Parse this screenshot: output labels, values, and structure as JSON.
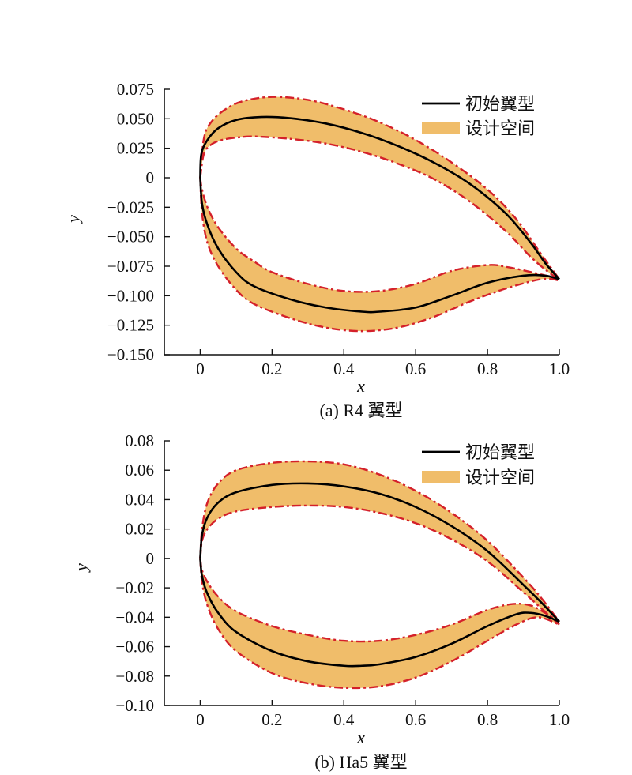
{
  "chart_data": [
    {
      "type": "line",
      "panel_caption": "(a) R4 翼型",
      "xlabel": "x",
      "ylabel": "y",
      "xlim": [
        -0.1,
        1.0
      ],
      "ylim": [
        -0.15,
        0.075
      ],
      "x_ticks": [
        0,
        0.2,
        0.4,
        0.6,
        0.8,
        1.0
      ],
      "x_tick_labels": [
        "0",
        "0.2",
        "0.4",
        "0.6",
        "0.8",
        "1.0"
      ],
      "y_ticks": [
        0.075,
        0.05,
        0.025,
        0,
        -0.025,
        -0.05,
        -0.075,
        -0.1,
        -0.125,
        -0.15
      ],
      "y_tick_labels": [
        "0.075",
        "0.050",
        "0.025",
        "0",
        "−0.025",
        "−0.050",
        "−0.075",
        "−0.100",
        "−0.125",
        "−0.150"
      ],
      "legend": {
        "position": "top-right",
        "entries": [
          "初始翼型",
          "设计空间"
        ]
      },
      "colors": {
        "baseline": "#000000",
        "band_fill": "#f0bd6a",
        "band_edge": "#d4202a"
      },
      "series": [
        {
          "name": "初始翼型",
          "role": "upper",
          "x": [
            0,
            0.003,
            0.02,
            0.05,
            0.1,
            0.17,
            0.25,
            0.35,
            0.45,
            0.55,
            0.65,
            0.75,
            0.85,
            0.92,
            0.96,
            1.0
          ],
          "y": [
            0,
            0.02,
            0.032,
            0.042,
            0.049,
            0.0515,
            0.0505,
            0.046,
            0.038,
            0.027,
            0.013,
            -0.005,
            -0.03,
            -0.055,
            -0.072,
            -0.086
          ]
        },
        {
          "name": "初始翼型",
          "role": "lower",
          "x": [
            0,
            0.005,
            0.02,
            0.05,
            0.1,
            0.15,
            0.25,
            0.35,
            0.45,
            0.5,
            0.6,
            0.7,
            0.8,
            0.9,
            0.96,
            1.0
          ],
          "y": [
            0,
            -0.022,
            -0.04,
            -0.06,
            -0.08,
            -0.092,
            -0.103,
            -0.11,
            -0.1135,
            -0.1135,
            -0.11,
            -0.1,
            -0.089,
            -0.083,
            -0.083,
            -0.086
          ]
        },
        {
          "name": "设计空间",
          "role": "upper_band_top",
          "x": [
            0,
            0.01,
            0.03,
            0.07,
            0.12,
            0.2,
            0.3,
            0.4,
            0.5,
            0.6,
            0.7,
            0.8,
            0.88,
            0.95,
            1.0
          ],
          "y": [
            0,
            0.033,
            0.047,
            0.058,
            0.065,
            0.0685,
            0.066,
            0.058,
            0.047,
            0.032,
            0.013,
            -0.01,
            -0.035,
            -0.065,
            -0.086
          ]
        },
        {
          "name": "设计空间",
          "role": "upper_band_bottom",
          "x": [
            0,
            0.01,
            0.03,
            0.06,
            0.1,
            0.15,
            0.25,
            0.35,
            0.45,
            0.55,
            0.65,
            0.75,
            0.85,
            0.92,
            0.97,
            1.0
          ],
          "y": [
            0,
            0.02,
            0.028,
            0.032,
            0.034,
            0.035,
            0.033,
            0.029,
            0.022,
            0.012,
            -0.001,
            -0.02,
            -0.045,
            -0.067,
            -0.08,
            -0.086
          ]
        },
        {
          "name": "设计空间",
          "role": "lower_band_top",
          "x": [
            0,
            0.005,
            0.02,
            0.05,
            0.1,
            0.15,
            0.2,
            0.3,
            0.4,
            0.5,
            0.6,
            0.7,
            0.8,
            0.86,
            0.95,
            1.0
          ],
          "y": [
            0,
            -0.01,
            -0.025,
            -0.042,
            -0.06,
            -0.071,
            -0.08,
            -0.09,
            -0.096,
            -0.096,
            -0.09,
            -0.079,
            -0.074,
            -0.076,
            -0.082,
            -0.086
          ]
        },
        {
          "name": "设计空间",
          "role": "lower_band_bottom",
          "x": [
            0,
            0.005,
            0.02,
            0.05,
            0.1,
            0.15,
            0.25,
            0.35,
            0.45,
            0.55,
            0.65,
            0.75,
            0.85,
            0.95,
            1.0
          ],
          "y": [
            0,
            -0.03,
            -0.055,
            -0.075,
            -0.095,
            -0.107,
            -0.119,
            -0.127,
            -0.13,
            -0.127,
            -0.118,
            -0.105,
            -0.094,
            -0.086,
            -0.087
          ]
        }
      ]
    },
    {
      "type": "line",
      "panel_caption": "(b) Ha5 翼型",
      "xlabel": "x",
      "ylabel": "y",
      "xlim": [
        -0.1,
        1.0
      ],
      "ylim": [
        -0.1,
        0.08
      ],
      "x_ticks": [
        0,
        0.2,
        0.4,
        0.6,
        0.8,
        1.0
      ],
      "x_tick_labels": [
        "0",
        "0.2",
        "0.4",
        "0.6",
        "0.8",
        "1.0"
      ],
      "y_ticks": [
        0.08,
        0.06,
        0.04,
        0.02,
        0,
        -0.02,
        -0.04,
        -0.06,
        -0.08,
        -0.1
      ],
      "y_tick_labels": [
        "0.08",
        "0.06",
        "0.04",
        "0.02",
        "0",
        "−0.02",
        "−0.04",
        "−0.06",
        "−0.08",
        "−0.10"
      ],
      "legend": {
        "position": "top-right",
        "entries": [
          "初始翼型",
          "设计空间"
        ]
      },
      "colors": {
        "baseline": "#000000",
        "band_fill": "#f0bd6a",
        "band_edge": "#d4202a"
      },
      "series": [
        {
          "name": "初始翼型",
          "role": "upper",
          "x": [
            0,
            0.005,
            0.02,
            0.05,
            0.1,
            0.2,
            0.3,
            0.4,
            0.5,
            0.6,
            0.7,
            0.8,
            0.9,
            0.95,
            1.0
          ],
          "y": [
            0,
            0.016,
            0.028,
            0.038,
            0.045,
            0.05,
            0.051,
            0.049,
            0.044,
            0.035,
            0.022,
            0.005,
            -0.018,
            -0.03,
            -0.043
          ]
        },
        {
          "name": "初始翼型",
          "role": "lower",
          "x": [
            0,
            0.005,
            0.02,
            0.05,
            0.1,
            0.2,
            0.3,
            0.4,
            0.45,
            0.5,
            0.6,
            0.7,
            0.8,
            0.88,
            0.92,
            0.96,
            1.0
          ],
          "y": [
            0,
            -0.012,
            -0.024,
            -0.037,
            -0.05,
            -0.063,
            -0.07,
            -0.073,
            -0.073,
            -0.072,
            -0.067,
            -0.058,
            -0.046,
            -0.038,
            -0.037,
            -0.039,
            -0.043
          ]
        },
        {
          "name": "设计空间",
          "role": "upper_band_top",
          "x": [
            0,
            0.005,
            0.02,
            0.05,
            0.1,
            0.2,
            0.3,
            0.4,
            0.5,
            0.6,
            0.7,
            0.8,
            0.9,
            0.95,
            1.0
          ],
          "y": [
            0,
            0.02,
            0.038,
            0.051,
            0.06,
            0.065,
            0.066,
            0.064,
            0.057,
            0.046,
            0.031,
            0.012,
            -0.013,
            -0.027,
            -0.043
          ]
        },
        {
          "name": "设计空间",
          "role": "upper_band_bottom",
          "x": [
            0,
            0.005,
            0.02,
            0.05,
            0.1,
            0.2,
            0.3,
            0.4,
            0.5,
            0.6,
            0.7,
            0.8,
            0.9,
            0.95,
            1.0
          ],
          "y": [
            0,
            0.012,
            0.02,
            0.027,
            0.032,
            0.035,
            0.036,
            0.035,
            0.031,
            0.024,
            0.013,
            -0.002,
            -0.023,
            -0.034,
            -0.045
          ]
        },
        {
          "name": "设计空间",
          "role": "lower_band_top",
          "x": [
            0,
            0.005,
            0.02,
            0.05,
            0.1,
            0.2,
            0.3,
            0.4,
            0.5,
            0.6,
            0.7,
            0.8,
            0.87,
            0.92,
            0.96,
            1.0
          ],
          "y": [
            0,
            -0.008,
            -0.016,
            -0.026,
            -0.036,
            -0.046,
            -0.052,
            -0.056,
            -0.056,
            -0.052,
            -0.045,
            -0.035,
            -0.031,
            -0.032,
            -0.037,
            -0.043
          ]
        },
        {
          "name": "设计空间",
          "role": "lower_band_bottom",
          "x": [
            0,
            0.005,
            0.02,
            0.05,
            0.1,
            0.2,
            0.3,
            0.4,
            0.5,
            0.6,
            0.7,
            0.8,
            0.88,
            0.94,
            1.0
          ],
          "y": [
            0,
            -0.016,
            -0.032,
            -0.048,
            -0.063,
            -0.078,
            -0.085,
            -0.088,
            -0.087,
            -0.081,
            -0.07,
            -0.056,
            -0.045,
            -0.04,
            -0.045
          ]
        }
      ]
    }
  ]
}
